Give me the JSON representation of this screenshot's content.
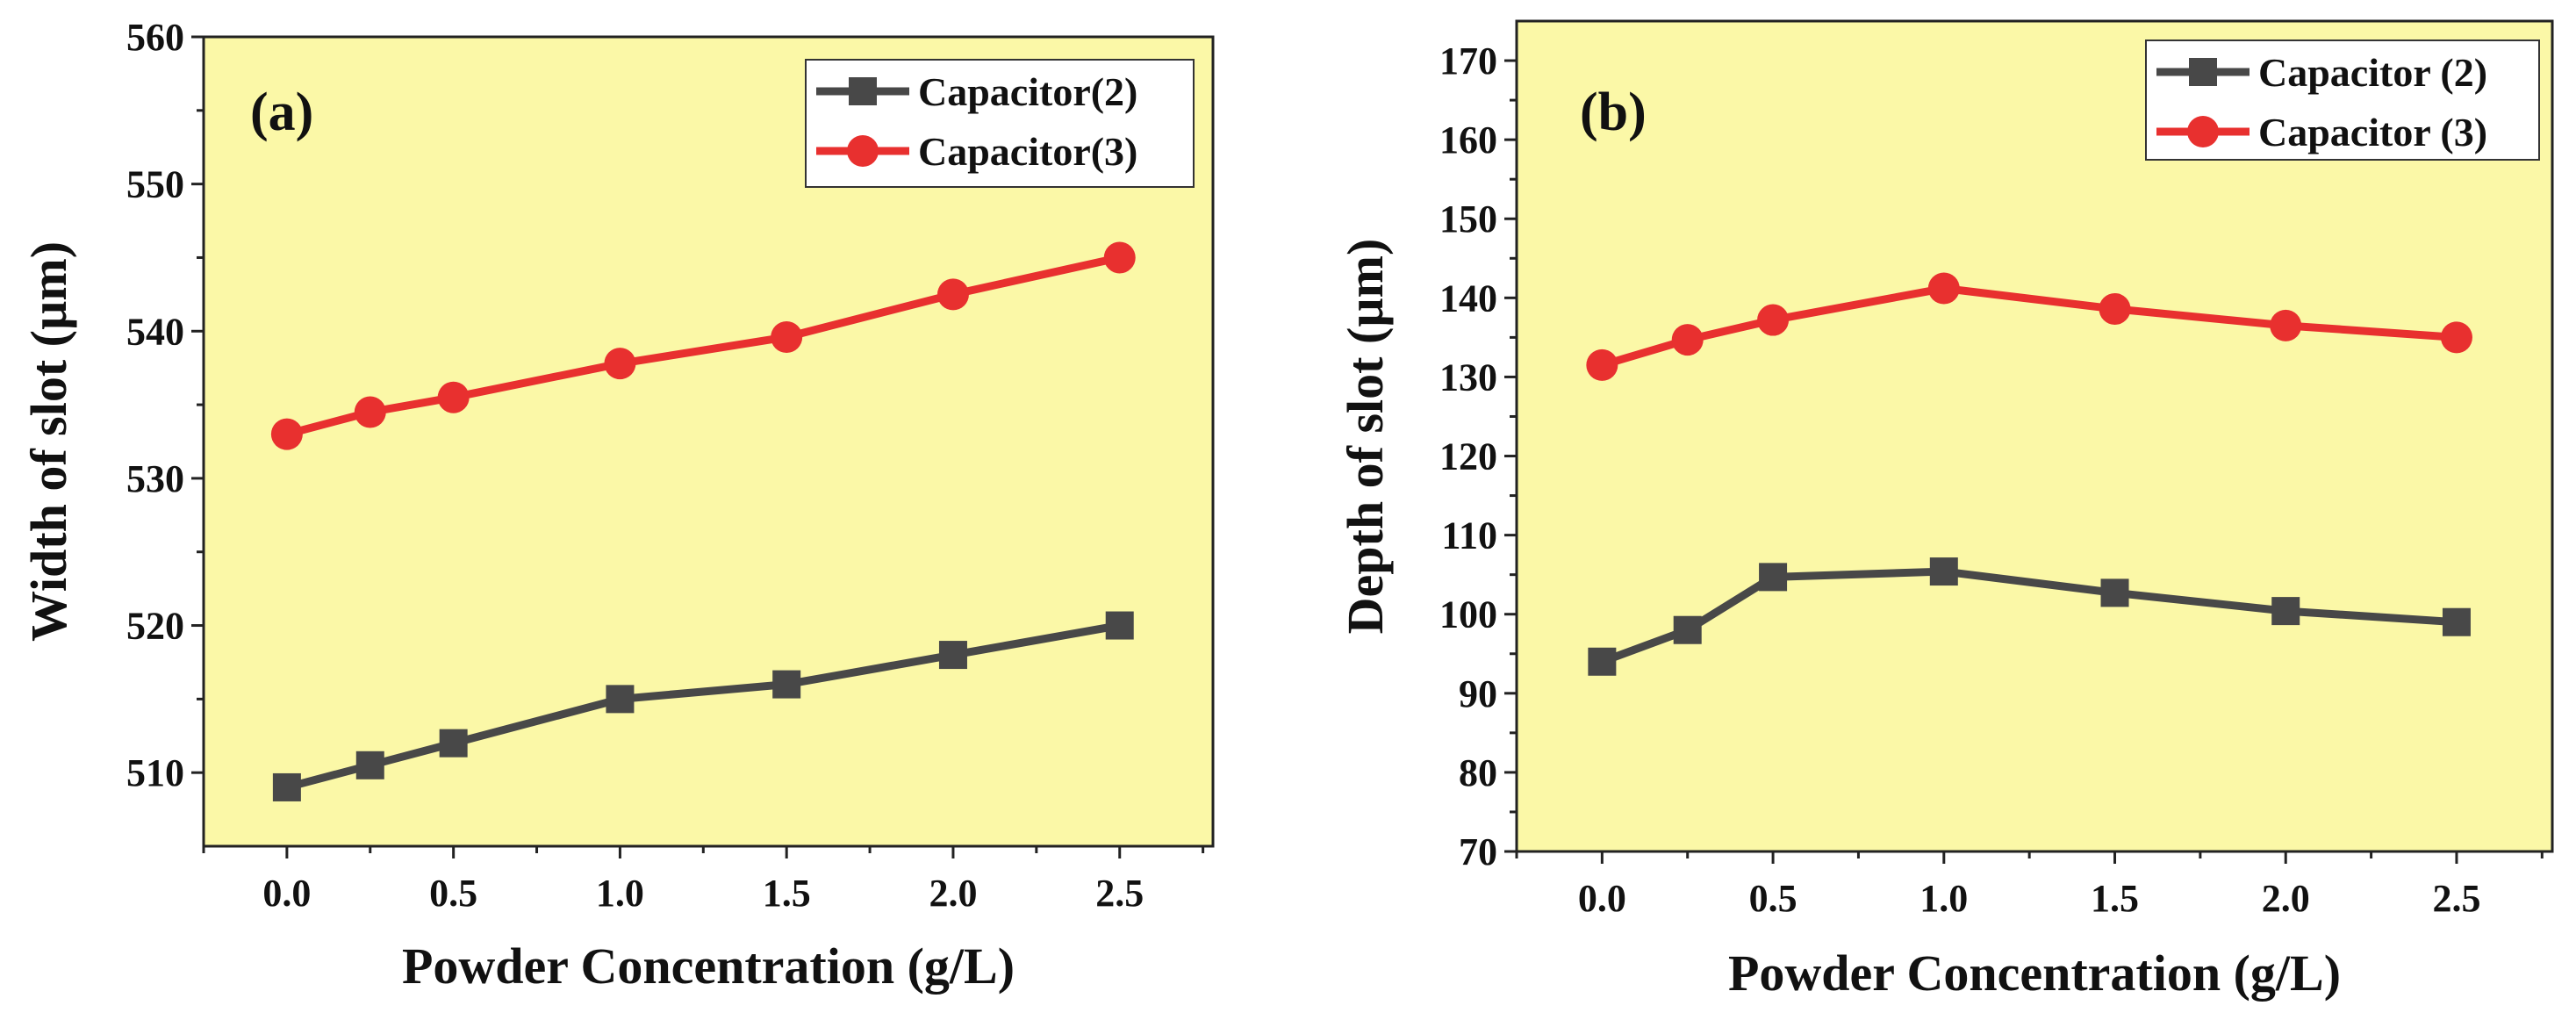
{
  "chart_data": [
    {
      "type": "line",
      "panel_label": "(a)",
      "xlabel": "Powder Concentration (g/L)",
      "ylabel": "Width of slot (µm)",
      "xlim": [
        -0.25,
        2.78
      ],
      "ylim": [
        505,
        560
      ],
      "xticks": [
        0.0,
        0.5,
        1.0,
        1.5,
        2.0,
        2.5
      ],
      "xtick_labels": [
        "0.0",
        "0.5",
        "1.0",
        "1.5",
        "2.0",
        "2.5"
      ],
      "yticks": [
        510,
        520,
        530,
        540,
        550,
        560
      ],
      "ytick_labels": [
        "510",
        "520",
        "530",
        "540",
        "550",
        "560"
      ],
      "x": [
        0.0,
        0.25,
        0.5,
        1.0,
        1.5,
        2.0,
        2.5
      ],
      "series": [
        {
          "name": "Capacitor(2)",
          "marker": "square",
          "color": "#484848",
          "values": [
            509,
            510.5,
            512,
            515,
            516,
            518,
            520
          ]
        },
        {
          "name": "Capacitor(3)",
          "marker": "circle",
          "color": "#e8302f",
          "values": [
            533,
            534.5,
            535.5,
            537.8,
            539.6,
            542.5,
            545
          ]
        }
      ],
      "legend_position": "top-right",
      "grid": false,
      "background": "#fbf8a7"
    },
    {
      "type": "line",
      "panel_label": "(b)",
      "xlabel": "Powder Concentration (g/L)",
      "ylabel": "Depth of slot (µm)",
      "xlim": [
        -0.25,
        2.78
      ],
      "ylim": [
        70,
        175
      ],
      "xticks": [
        0.0,
        0.5,
        1.0,
        1.5,
        2.0,
        2.5
      ],
      "xtick_labels": [
        "0.0",
        "0.5",
        "1.0",
        "1.5",
        "2.0",
        "2.5"
      ],
      "yticks": [
        70,
        80,
        90,
        100,
        110,
        120,
        130,
        140,
        150,
        160,
        170
      ],
      "ytick_labels": [
        "70",
        "80",
        "90",
        "100",
        "110",
        "120",
        "130",
        "140",
        "150",
        "160",
        "170"
      ],
      "x": [
        0.0,
        0.25,
        0.5,
        1.0,
        1.5,
        2.0,
        2.5
      ],
      "series": [
        {
          "name": "Capacitor (2)",
          "marker": "square",
          "color": "#484848",
          "values": [
            94,
            98,
            104.7,
            105.4,
            102.7,
            100.4,
            99
          ]
        },
        {
          "name": "Capacitor (3)",
          "marker": "circle",
          "color": "#e8302f",
          "values": [
            131.5,
            134.7,
            137.2,
            141.2,
            138.6,
            136.5,
            135
          ]
        }
      ],
      "legend_position": "top-right",
      "grid": false,
      "background": "#fbf8a7"
    }
  ]
}
